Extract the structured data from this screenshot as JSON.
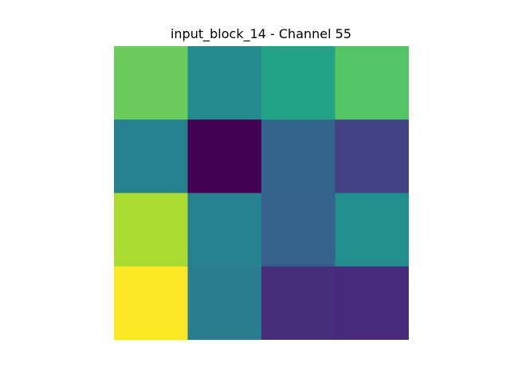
{
  "chart_data": {
    "type": "heatmap",
    "title": "input_block_14 - Channel 55",
    "rows": 4,
    "cols": 4,
    "colormap": "viridis",
    "values": [
      [
        0.77,
        0.47,
        0.58,
        0.73
      ],
      [
        0.43,
        0.0,
        0.32,
        0.19
      ],
      [
        0.87,
        0.43,
        0.31,
        0.49
      ],
      [
        1.0,
        0.42,
        0.13,
        0.12
      ]
    ],
    "axes": "off",
    "colorbar": false
  }
}
